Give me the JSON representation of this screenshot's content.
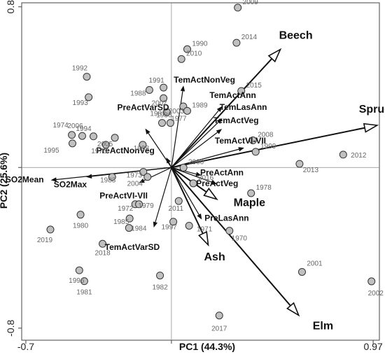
{
  "chart_data": {
    "type": "scatter",
    "title": "",
    "xlabel": "PC1 (44.3%)",
    "ylabel": "PC2 (25.6%)",
    "xlim": [
      -0.72,
      1.0
    ],
    "ylim": [
      -0.86,
      0.82
    ],
    "x_ticks": [
      {
        "value": -0.7,
        "label": "-0.7"
      },
      {
        "value": 0.97,
        "label": "0.97"
      }
    ],
    "y_ticks": [
      {
        "value": 0.8,
        "label": "0.8"
      },
      {
        "value": -0.8,
        "label": "-0.8"
      }
    ],
    "grid": false,
    "points": [
      {
        "label": "2009",
        "x": 0.319,
        "y": 0.796
      },
      {
        "label": "2014",
        "x": 0.313,
        "y": 0.621
      },
      {
        "label": "1990",
        "x": 0.076,
        "y": 0.589
      },
      {
        "label": "2010",
        "x": 0.048,
        "y": 0.54
      },
      {
        "label": "1992",
        "x": -0.407,
        "y": 0.452
      },
      {
        "label": "1991",
        "x": -0.038,
        "y": 0.398
      },
      {
        "label": "1988",
        "x": -0.106,
        "y": 0.386
      },
      {
        "label": "2015",
        "x": 0.336,
        "y": 0.381
      },
      {
        "label": "1993",
        "x": -0.398,
        "y": 0.35
      },
      {
        "label": "2007",
        "x": -0.038,
        "y": 0.345
      },
      {
        "label": "2003",
        "x": 0.057,
        "y": 0.304
      },
      {
        "label": "1989",
        "x": 0.076,
        "y": 0.282
      },
      {
        "label": "1986",
        "x": -0.022,
        "y": 0.275
      },
      {
        "label": "1987",
        "x": -0.045,
        "y": 0.222
      },
      {
        "label": "1977",
        "x": -0.005,
        "y": 0.222
      },
      {
        "label": "1974",
        "x": -0.479,
        "y": 0.162
      },
      {
        "label": "2006",
        "x": -0.429,
        "y": 0.157
      },
      {
        "label": "1994",
        "x": -0.375,
        "y": 0.155
      },
      {
        "label": "2005",
        "x": -0.272,
        "y": 0.148
      },
      {
        "label": "1976",
        "x": -0.315,
        "y": 0.113
      },
      {
        "label": "1995",
        "x": -0.476,
        "y": 0.12
      },
      {
        "label": "1998",
        "x": -0.138,
        "y": 0.113
      },
      {
        "label": "2008",
        "x": 0.392,
        "y": 0.135
      },
      {
        "label": "1999",
        "x": 0.405,
        "y": 0.078
      },
      {
        "label": "2012",
        "x": 0.826,
        "y": 0.064
      },
      {
        "label": "2013",
        "x": 0.616,
        "y": 0.018
      },
      {
        "label": "2000",
        "x": 0.058,
        "y": -0.001
      },
      {
        "label": "1973",
        "x": -0.135,
        "y": -0.022
      },
      {
        "label": "2004",
        "x": -0.115,
        "y": -0.047
      },
      {
        "label": "1983",
        "x": -0.285,
        "y": -0.047
      },
      {
        "label": "2016",
        "x": 0.105,
        "y": -0.079
      },
      {
        "label": "1978",
        "x": 0.383,
        "y": -0.128
      },
      {
        "label": "1972",
        "x": -0.174,
        "y": -0.183
      },
      {
        "label": "1979",
        "x": -0.156,
        "y": -0.183
      },
      {
        "label": "2011",
        "x": 0.035,
        "y": -0.167
      },
      {
        "label": "1980",
        "x": -0.437,
        "y": -0.235
      },
      {
        "label": "1985",
        "x": -0.201,
        "y": -0.254
      },
      {
        "label": "1984",
        "x": -0.204,
        "y": -0.301
      },
      {
        "label": "1997",
        "x": 0.009,
        "y": -0.27
      },
      {
        "label": "1971",
        "x": 0.085,
        "y": -0.29
      },
      {
        "label": "1970",
        "x": 0.279,
        "y": -0.315
      },
      {
        "label": "2019",
        "x": -0.582,
        "y": -0.309
      },
      {
        "label": "2018",
        "x": -0.331,
        "y": -0.38
      },
      {
        "label": "1996",
        "x": -0.443,
        "y": -0.512
      },
      {
        "label": "1981",
        "x": -0.419,
        "y": -0.566
      },
      {
        "label": "1982",
        "x": -0.055,
        "y": -0.538
      },
      {
        "label": "2001",
        "x": 0.628,
        "y": -0.52
      },
      {
        "label": "2002",
        "x": 0.962,
        "y": -0.567
      },
      {
        "label": "2017",
        "x": 0.23,
        "y": -0.737
      }
    ],
    "climate_vectors": [
      {
        "label": "TemActNonVeg",
        "x": 0.058,
        "y": 0.408
      },
      {
        "label": "TemActAnn",
        "x": 0.244,
        "y": 0.305
      },
      {
        "label": "TemLasAnn",
        "x": 0.245,
        "y": 0.245
      },
      {
        "label": "TemActVeg",
        "x": 0.243,
        "y": 0.192
      },
      {
        "label": "TemActVI-VII",
        "x": 0.35,
        "y": 0.098
      },
      {
        "label": "PreActVarSD",
        "x": -0.126,
        "y": 0.194
      },
      {
        "label": "PreActNonVeg",
        "x": -0.025,
        "y": 0.05
      },
      {
        "label": "SO2Mean",
        "x": -0.58,
        "y": -0.063
      },
      {
        "label": "SO2Max",
        "x": -0.41,
        "y": -0.047
      },
      {
        "label": "PreActVI-VII",
        "x": -0.157,
        "y": -0.077
      },
      {
        "label": "PreActAnn",
        "x": 0.145,
        "y": -0.04
      },
      {
        "label": "PreActVeg",
        "x": 0.22,
        "y": -0.083
      },
      {
        "label": "PreLasAnn",
        "x": 0.146,
        "y": -0.259
      },
      {
        "label": "TemActVarSD",
        "x": -0.085,
        "y": -0.299
      }
    ],
    "tree_species": [
      {
        "label": "Beech",
        "x": 0.524,
        "y": 0.588
      },
      {
        "label": "Spruce",
        "x": 0.989,
        "y": 0.21
      },
      {
        "label": "Maple",
        "x": 0.218,
        "y": -0.158
      },
      {
        "label": "Ash",
        "x": 0.177,
        "y": -0.386
      },
      {
        "label": "Elm",
        "x": 0.612,
        "y": -0.736
      }
    ],
    "style": {
      "point_fill": "#c0c0c0",
      "point_stroke": "#333333",
      "vector_color": "#111111",
      "year_label_color": "#666666"
    }
  }
}
